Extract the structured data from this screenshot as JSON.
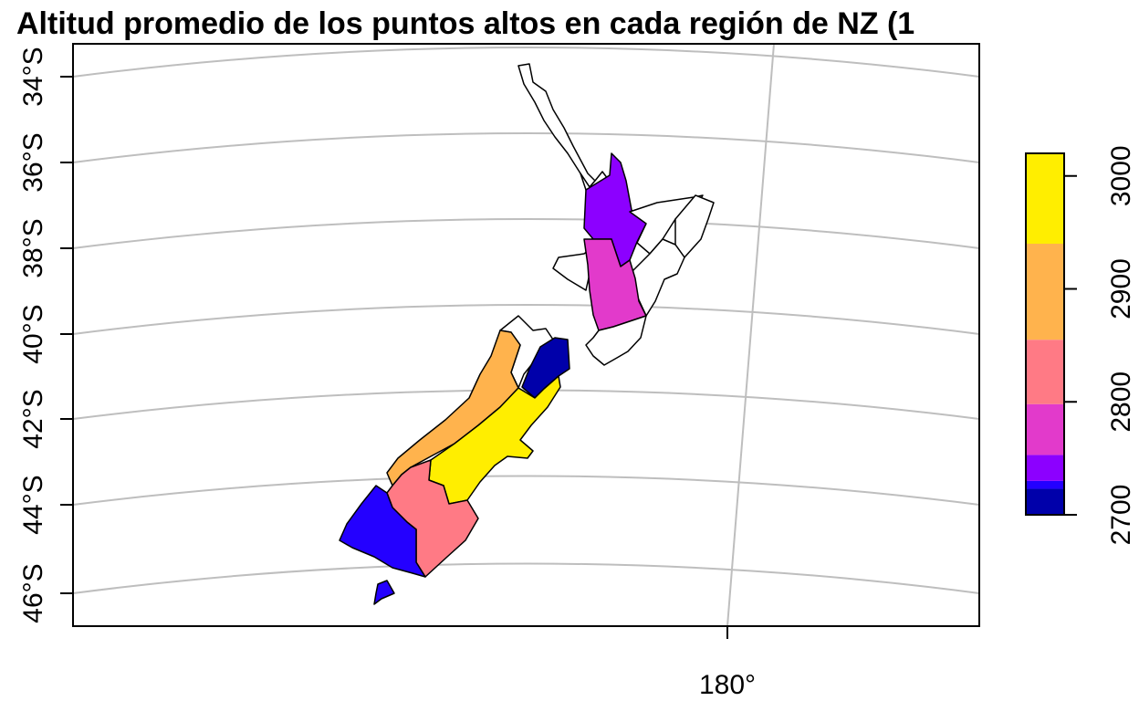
{
  "map": {
    "title": "Altitud promedio de los puntos altos en cada región de NZ (1",
    "lat_labels": [
      "34°S",
      "36°S",
      "38°S",
      "40°S",
      "42°S",
      "44°S",
      "46°S"
    ],
    "lon_labels": [
      "180°"
    ],
    "legend": {
      "ticks": [
        "2700",
        "2800",
        "2900",
        "3000"
      ],
      "range": [
        2700,
        3020
      ],
      "bins": [
        {
          "from": 2700,
          "to": 2723,
          "color": "#0000aa"
        },
        {
          "from": 2723,
          "to": 2730,
          "color": "#2400ff"
        },
        {
          "from": 2730,
          "to": 2753,
          "color": "#8c00ff"
        },
        {
          "from": 2753,
          "to": 2798,
          "color": "#e23acb"
        },
        {
          "from": 2798,
          "to": 2855,
          "color": "#ff7a85"
        },
        {
          "from": 2855,
          "to": 2940,
          "color": "#ffb34d"
        },
        {
          "from": 2940,
          "to": 3020,
          "color": "#ffee00"
        }
      ]
    },
    "regions": [
      {
        "name": "Northland",
        "color": "#ffffff"
      },
      {
        "name": "Auckland",
        "color": "#ffffff"
      },
      {
        "name": "Waikato",
        "color": "#8c00ff"
      },
      {
        "name": "Bay of Plenty",
        "color": "#ffffff"
      },
      {
        "name": "Gisborne",
        "color": "#ffffff"
      },
      {
        "name": "Hawke's Bay",
        "color": "#ffffff"
      },
      {
        "name": "Taranaki",
        "color": "#ffffff"
      },
      {
        "name": "Manawatu-Wanganui",
        "color": "#e23acb"
      },
      {
        "name": "Wellington",
        "color": "#ffffff"
      },
      {
        "name": "Nelson/Tasman",
        "color": "#ffffff"
      },
      {
        "name": "Marlborough",
        "color": "#0000aa"
      },
      {
        "name": "West Coast",
        "color": "#ffb34d"
      },
      {
        "name": "Canterbury",
        "color": "#ffee00"
      },
      {
        "name": "Otago",
        "color": "#ff7a85"
      },
      {
        "name": "Southland",
        "color": "#2400ff"
      }
    ]
  }
}
